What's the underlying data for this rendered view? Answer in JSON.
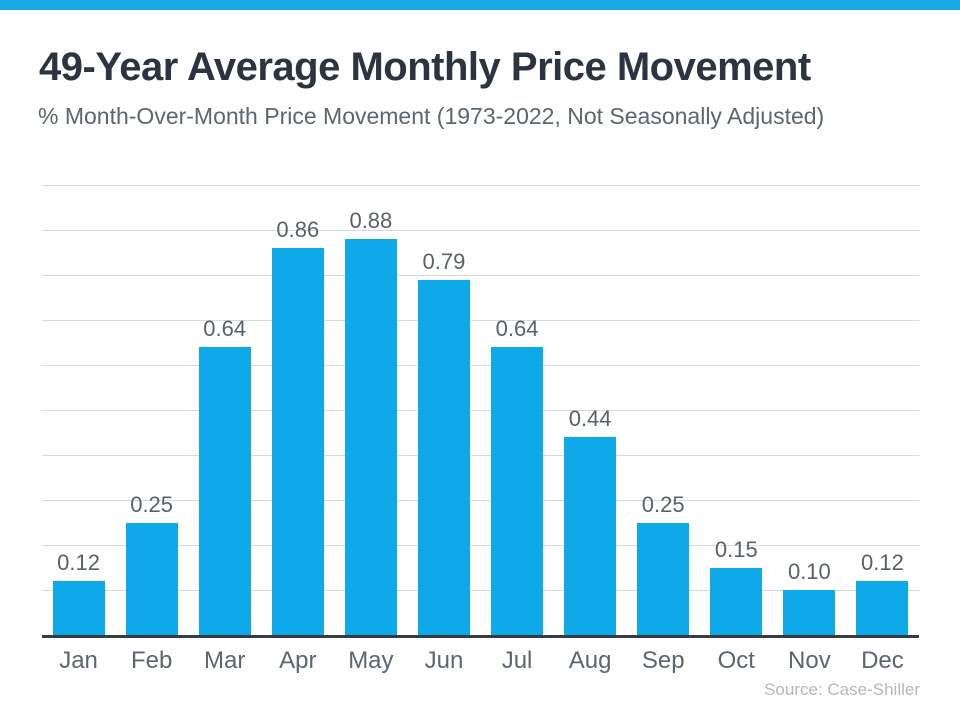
{
  "colors": {
    "accent_bar": "#16aae9",
    "bar": "#0da9e9",
    "title_text": "#2b3440",
    "subtitle_text": "#5b6670",
    "value_label_text": "#596269",
    "month_label_text": "#5b6670",
    "gridline": "#d9d9d9",
    "axis_line": "#383c42",
    "source_text": "#b3b9bf",
    "background": "#ffffff"
  },
  "chart_data": {
    "type": "bar",
    "title": "49-Year Average Monthly Price Movement",
    "subtitle": "% Month-Over-Month Price Movement (1973-2022, Not Seasonally Adjusted)",
    "categories": [
      "Jan",
      "Feb",
      "Mar",
      "Apr",
      "May",
      "Jun",
      "Jul",
      "Aug",
      "Sep",
      "Oct",
      "Nov",
      "Dec"
    ],
    "values": [
      0.12,
      0.25,
      0.64,
      0.86,
      0.88,
      0.79,
      0.64,
      0.44,
      0.25,
      0.15,
      0.1,
      0.12
    ],
    "value_labels": [
      "0.12",
      "0.25",
      "0.64",
      "0.86",
      "0.88",
      "0.79",
      "0.64",
      "0.44",
      "0.25",
      "0.15",
      "0.10",
      "0.12"
    ],
    "xlabel": "",
    "ylabel": "",
    "ylim": [
      0,
      1.0
    ],
    "gridline_step": 0.1,
    "grid": "horizontal",
    "y_axis_ticks_visible": false,
    "legend": "none",
    "data_labels_position": "above-bars",
    "bar_color": "#0da9e9",
    "source_label": "Source: Case-Shiller"
  }
}
